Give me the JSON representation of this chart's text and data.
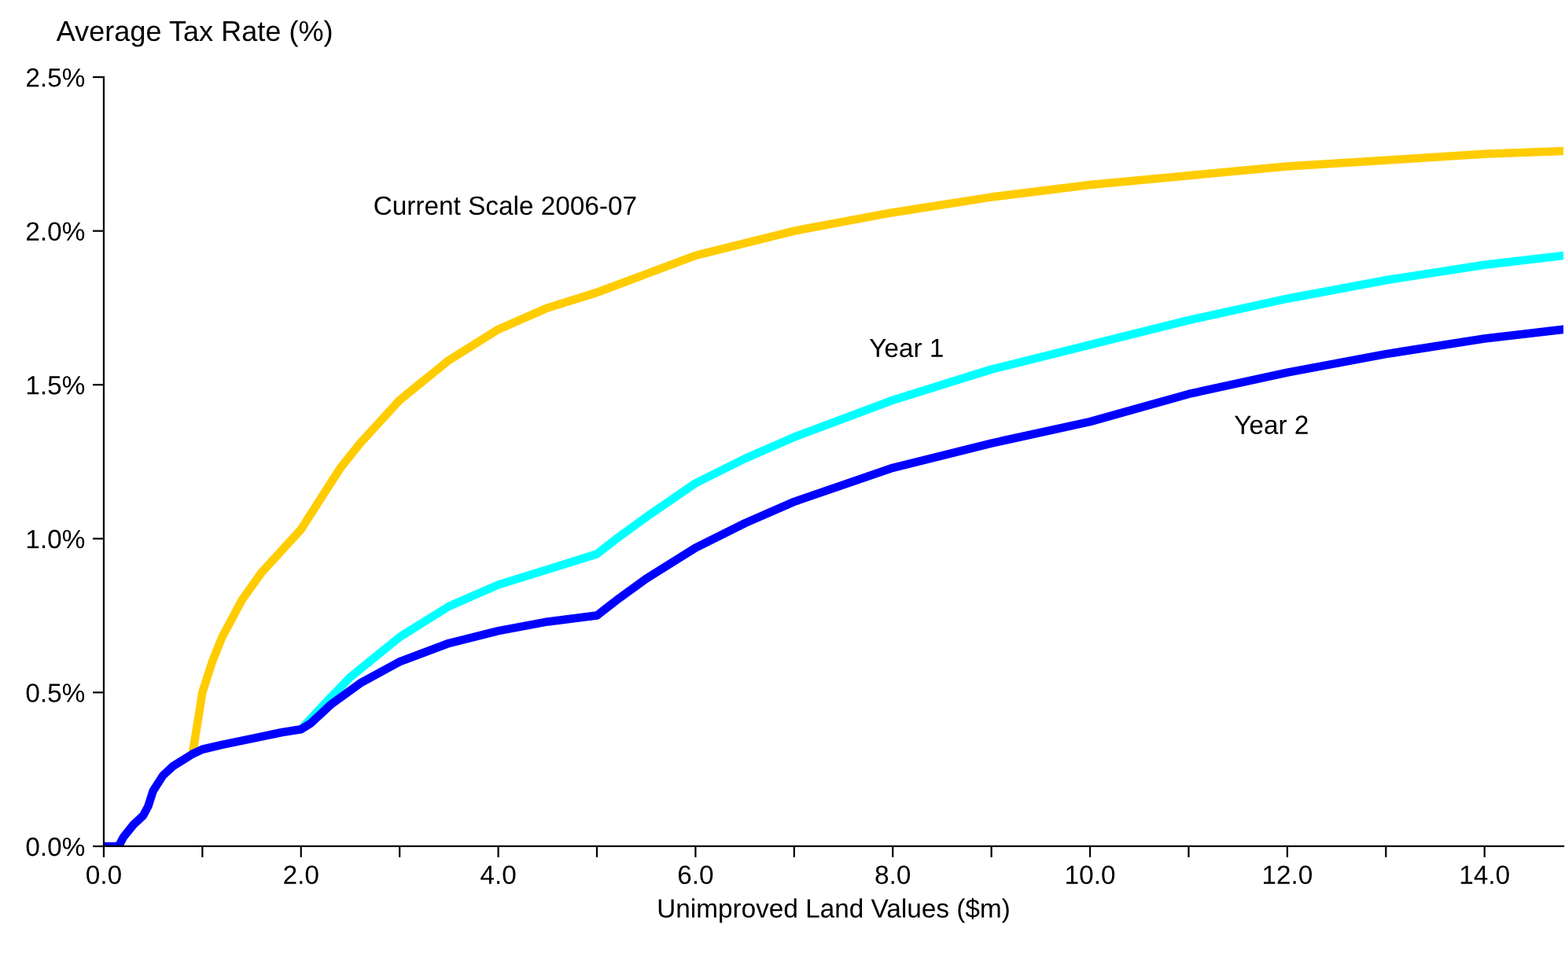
{
  "chart_data": {
    "type": "line",
    "ylabel": "Average Tax Rate (%)",
    "xlabel": "Unimproved Land Values ($m)",
    "xlim": [
      0,
      14.8
    ],
    "xticks": [
      {
        "value": 0,
        "label": "0.0"
      },
      {
        "value": 1,
        "label": null
      },
      {
        "value": 2,
        "label": "2.0"
      },
      {
        "value": 3,
        "label": null
      },
      {
        "value": 4,
        "label": "4.0"
      },
      {
        "value": 5,
        "label": null
      },
      {
        "value": 6,
        "label": "6.0"
      },
      {
        "value": 7,
        "label": null
      },
      {
        "value": 8,
        "label": "8.0"
      },
      {
        "value": 9,
        "label": null
      },
      {
        "value": 10,
        "label": "10.0"
      },
      {
        "value": 11,
        "label": null
      },
      {
        "value": 12,
        "label": "12.0"
      },
      {
        "value": 13,
        "label": null
      },
      {
        "value": 14,
        "label": "14.0"
      }
    ],
    "ylim": [
      0,
      2.5
    ],
    "yticks": [
      {
        "value": 0,
        "label": "0.0%"
      },
      {
        "value": 0.5,
        "label": "0.5%"
      },
      {
        "value": 1.0,
        "label": "1.0%"
      },
      {
        "value": 1.5,
        "label": "1.5%"
      },
      {
        "value": 2.0,
        "label": "2.0%"
      },
      {
        "value": 2.5,
        "label": "2.5%"
      }
    ],
    "grid": false,
    "legend": false,
    "marker": "none",
    "line_style": "solid",
    "series": [
      {
        "name": "Current Scale 2006-07",
        "color": "#ffcc00",
        "x": [
          0.9,
          0.95,
          1.0,
          1.1,
          1.2,
          1.4,
          1.6,
          1.8,
          2.0,
          2.2,
          2.4,
          2.6,
          3.0,
          3.5,
          4.0,
          4.5,
          5.0,
          5.5,
          6.0,
          7.0,
          8.0,
          9.0,
          10.0,
          11.0,
          12.0,
          13.0,
          14.0,
          14.8
        ],
        "values": [
          0.3,
          0.4,
          0.5,
          0.6,
          0.68,
          0.8,
          0.89,
          0.96,
          1.03,
          1.13,
          1.23,
          1.31,
          1.45,
          1.58,
          1.68,
          1.75,
          1.8,
          1.86,
          1.92,
          2.0,
          2.06,
          2.11,
          2.15,
          2.18,
          2.21,
          2.23,
          2.25,
          2.26
        ]
      },
      {
        "name": "Year 1",
        "color": "#00ffff",
        "x": [
          2.0,
          2.2,
          2.5,
          3.0,
          3.5,
          4.0,
          4.5,
          5.0,
          5.2,
          5.5,
          6.0,
          6.5,
          7.0,
          8.0,
          9.0,
          10.0,
          11.0,
          12.0,
          13.0,
          14.0,
          14.8
        ],
        "values": [
          0.38,
          0.45,
          0.55,
          0.68,
          0.78,
          0.85,
          0.9,
          0.95,
          1.0,
          1.07,
          1.18,
          1.26,
          1.33,
          1.45,
          1.55,
          1.63,
          1.71,
          1.78,
          1.84,
          1.89,
          1.92
        ]
      },
      {
        "name": "Year 2",
        "color": "#0000ff",
        "x": [
          0,
          0.15,
          0.2,
          0.3,
          0.4,
          0.45,
          0.5,
          0.6,
          0.7,
          0.8,
          0.9,
          1.0,
          1.2,
          1.5,
          1.8,
          2.0,
          2.1,
          2.3,
          2.6,
          3.0,
          3.5,
          4.0,
          4.5,
          5.0,
          5.2,
          5.5,
          6.0,
          6.5,
          7.0,
          8.0,
          9.0,
          10.0,
          11.0,
          12.0,
          13.0,
          14.0,
          14.8
        ],
        "values": [
          0,
          0,
          0.03,
          0.07,
          0.1,
          0.13,
          0.18,
          0.23,
          0.26,
          0.28,
          0.3,
          0.315,
          0.33,
          0.35,
          0.37,
          0.38,
          0.4,
          0.46,
          0.53,
          0.6,
          0.66,
          0.7,
          0.73,
          0.75,
          0.8,
          0.87,
          0.97,
          1.05,
          1.12,
          1.23,
          1.31,
          1.38,
          1.47,
          1.54,
          1.6,
          1.65,
          1.68
        ]
      }
    ]
  }
}
